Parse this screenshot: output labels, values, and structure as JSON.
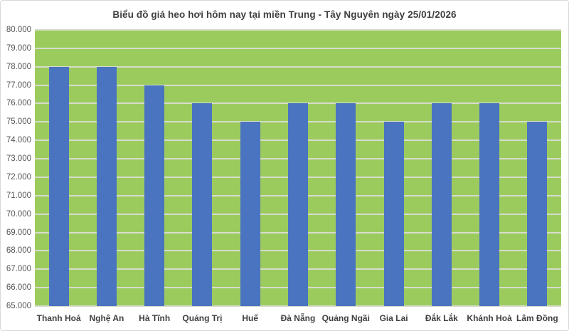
{
  "chart_data": {
    "type": "bar",
    "title": "Biểu đồ giá heo hơi hôm nay tại miền Trung - Tây Nguyên ngày 25/01/2026",
    "categories": [
      "Thanh Hoá",
      "Nghệ An",
      "Hà Tĩnh",
      "Quảng Trị",
      "Huế",
      "Đà Nẵng",
      "Quảng Ngãi",
      "Gia Lai",
      "Đắk Lắk",
      "Khánh Hoà",
      "Lâm Đồng"
    ],
    "values": [
      78000,
      78000,
      77000,
      76000,
      75000,
      76000,
      76000,
      75000,
      76000,
      76000,
      75000
    ],
    "xlabel": "",
    "ylabel": "",
    "ylim": [
      65000,
      80000
    ],
    "ytick_step": 1000,
    "ytick_labels": [
      "65.000",
      "66.000",
      "67.000",
      "68.000",
      "69.000",
      "70.000",
      "71.000",
      "72.000",
      "73.000",
      "74.000",
      "75.000",
      "76.000",
      "77.000",
      "78.000",
      "79.000",
      "80.000"
    ],
    "grid": true,
    "legend": "none",
    "colors": {
      "bar": "#4a73c0",
      "plot_bg": "#9ccb5d",
      "gridline": "#d6dccc",
      "title": "#3f3f3f",
      "y_tick_label": "#555555",
      "x_tick_label": "#3f3f3f",
      "frame_border": "#d8d8d8",
      "background": "#ffffff"
    }
  }
}
